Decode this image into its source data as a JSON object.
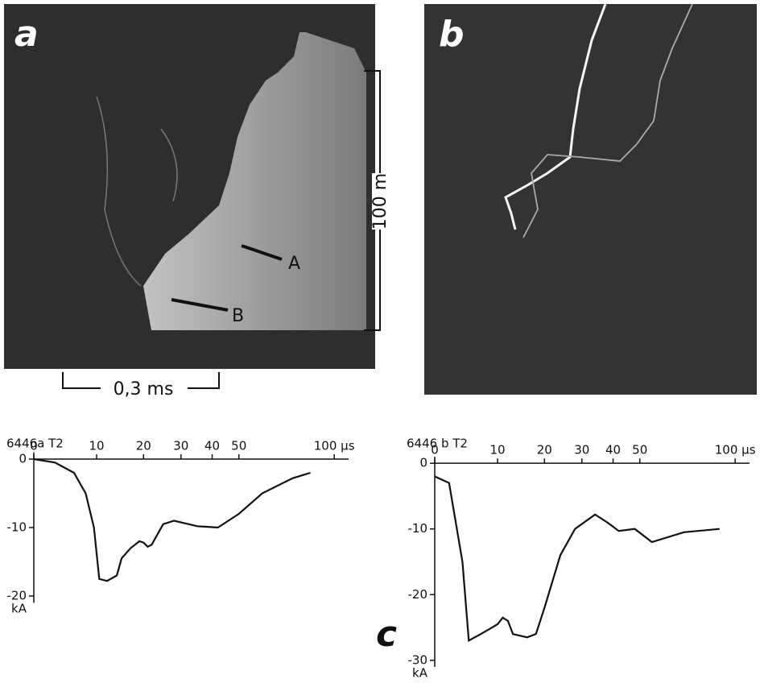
{
  "panels": {
    "a": {
      "label": "a",
      "arrow_a": "A",
      "arrow_b": "B",
      "scale_vertical": "100 m",
      "scale_horizontal": "0,3 ms"
    },
    "b": {
      "label": "b"
    },
    "c": {
      "label": "c"
    }
  },
  "chart_data": [
    {
      "type": "line",
      "title": "6446a T2",
      "y_unit": "kA",
      "color": "#111",
      "x": [
        0,
        3,
        6,
        8,
        9.5,
        10.5,
        12,
        14,
        15,
        17,
        19,
        20,
        21,
        22,
        25,
        28,
        35,
        42,
        50,
        60,
        75,
        85
      ],
      "series": [
        {
          "color": "#111",
          "values": [
            0,
            -0.5,
            -2,
            -5,
            -10,
            -17.5,
            -17.8,
            -17,
            -14.5,
            -13,
            -12,
            -12.2,
            -12.8,
            -12.5,
            -9.5,
            -9,
            -9.8,
            -10,
            -8,
            -5,
            -2.8,
            -2
          ]
        }
      ],
      "xlim": [
        0,
        110
      ],
      "ylim": [
        -21,
        1
      ],
      "xticks": [
        0,
        10,
        20,
        30,
        40,
        50,
        {
          "value": 100,
          "label": "100 μs"
        }
      ],
      "yticks": [
        0,
        -10,
        -20
      ]
    },
    {
      "type": "line",
      "title": "6446 b T2",
      "y_unit": "kA",
      "color": "#111",
      "x": [
        0,
        2,
        4,
        5,
        7,
        9,
        10,
        11,
        12,
        13,
        16,
        18,
        20,
        24,
        28,
        34,
        38,
        42,
        48,
        55,
        70,
        90
      ],
      "series": [
        {
          "color": "#111",
          "values": [
            -2,
            -3,
            -15,
            -27,
            -26,
            -25,
            -24.5,
            -23.5,
            -24,
            -26,
            -26.5,
            -26,
            -22,
            -14,
            -10,
            -7.8,
            -9,
            -10.3,
            -10,
            -12,
            -10.5,
            -10
          ]
        }
      ],
      "xlim": [
        0,
        110
      ],
      "ylim": [
        -31,
        1
      ],
      "xticks": [
        0,
        10,
        20,
        30,
        40,
        50,
        {
          "value": 100,
          "label": "100 μs"
        }
      ],
      "yticks": [
        0,
        -10,
        -20,
        -30
      ]
    }
  ]
}
